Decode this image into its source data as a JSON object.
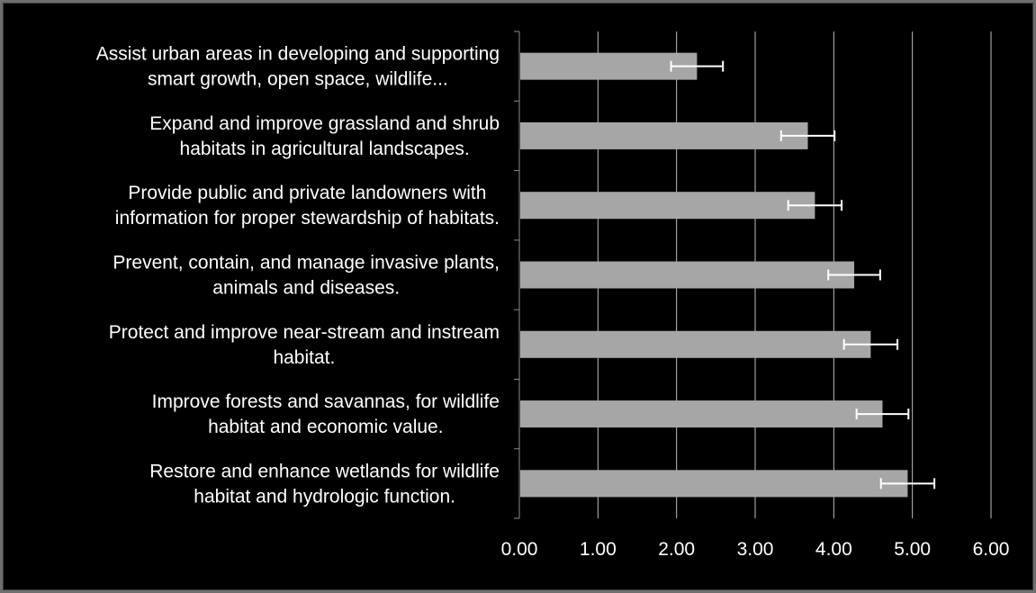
{
  "chart_data": {
    "type": "bar",
    "orientation": "horizontal",
    "title": "",
    "xlabel": "",
    "ylabel": "",
    "xlim": [
      0,
      6
    ],
    "grid": true,
    "legend": "none",
    "colors": {
      "background": "#000000",
      "bar": "#a6a6a6",
      "error_bar": "#ffffff",
      "grid": "#bfbfbf",
      "text": "#ffffff"
    },
    "ticks": [
      "0.00",
      "1.00",
      "2.00",
      "3.00",
      "4.00",
      "5.00",
      "6.00"
    ],
    "categories": [
      [
        "Assist urban areas in developing and supporting",
        "smart growth, open space, wildlife..."
      ],
      [
        "Expand and improve grassland and shrub",
        "habitats in agricultural landscapes."
      ],
      [
        "Provide public and private landowners with",
        "information for proper stewardship of habitats."
      ],
      [
        "Prevent, contain, and manage invasive plants,",
        "animals and diseases."
      ],
      [
        "Protect and improve near-stream and instream",
        "habitat."
      ],
      [
        "Improve forests and savannas, for wildlife",
        "habitat and economic value."
      ],
      [
        "Restore and enhance wetlands for wildlife",
        "habitat and hydrologic function."
      ]
    ],
    "values": [
      2.26,
      3.67,
      3.76,
      4.26,
      4.47,
      4.62,
      4.94
    ],
    "error": [
      0.33,
      0.34,
      0.34,
      0.33,
      0.34,
      0.33,
      0.34
    ]
  }
}
